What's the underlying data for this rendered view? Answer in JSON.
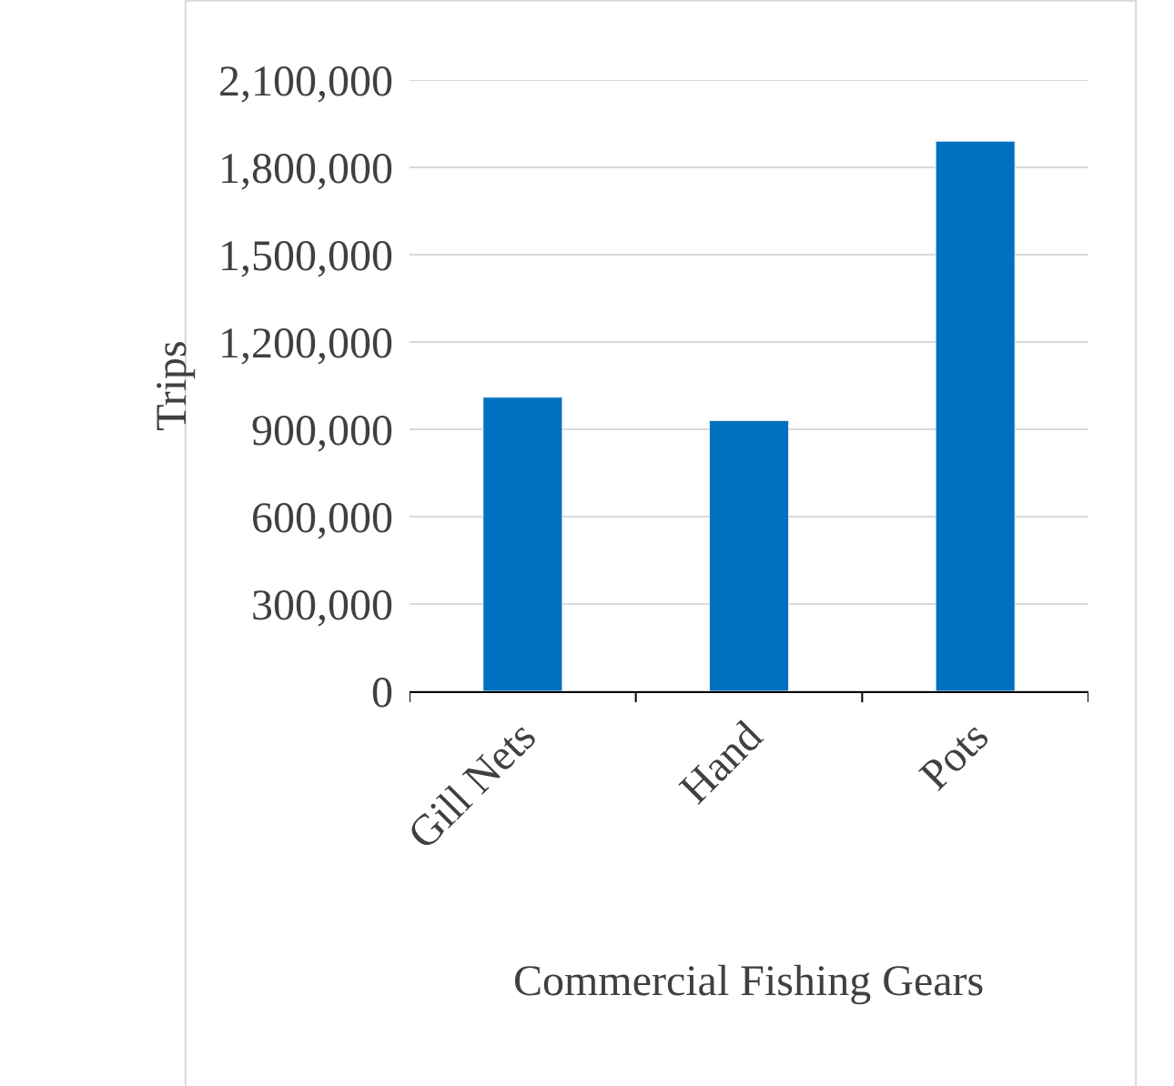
{
  "chart_data": {
    "type": "bar",
    "xlabel": "Commercial Fishing Gears",
    "ylabel": "Trips",
    "categories": [
      "Gill Nets",
      "Hand",
      "Pots"
    ],
    "values": [
      1010000,
      930000,
      1890000
    ],
    "color": "#0070c0",
    "ylim": [
      0,
      2100000
    ],
    "yticks": [
      {
        "value": 0,
        "label": "0"
      },
      {
        "value": 300000,
        "label": "300,000"
      },
      {
        "value": 600000,
        "label": "600,000"
      },
      {
        "value": 900000,
        "label": "900,000"
      },
      {
        "value": 1200000,
        "label": "1,200,000"
      },
      {
        "value": 1500000,
        "label": "1,500,000"
      },
      {
        "value": 1800000,
        "label": "1,800,000"
      },
      {
        "value": 2100000,
        "label": "2,100,000"
      }
    ],
    "grid": "y"
  }
}
